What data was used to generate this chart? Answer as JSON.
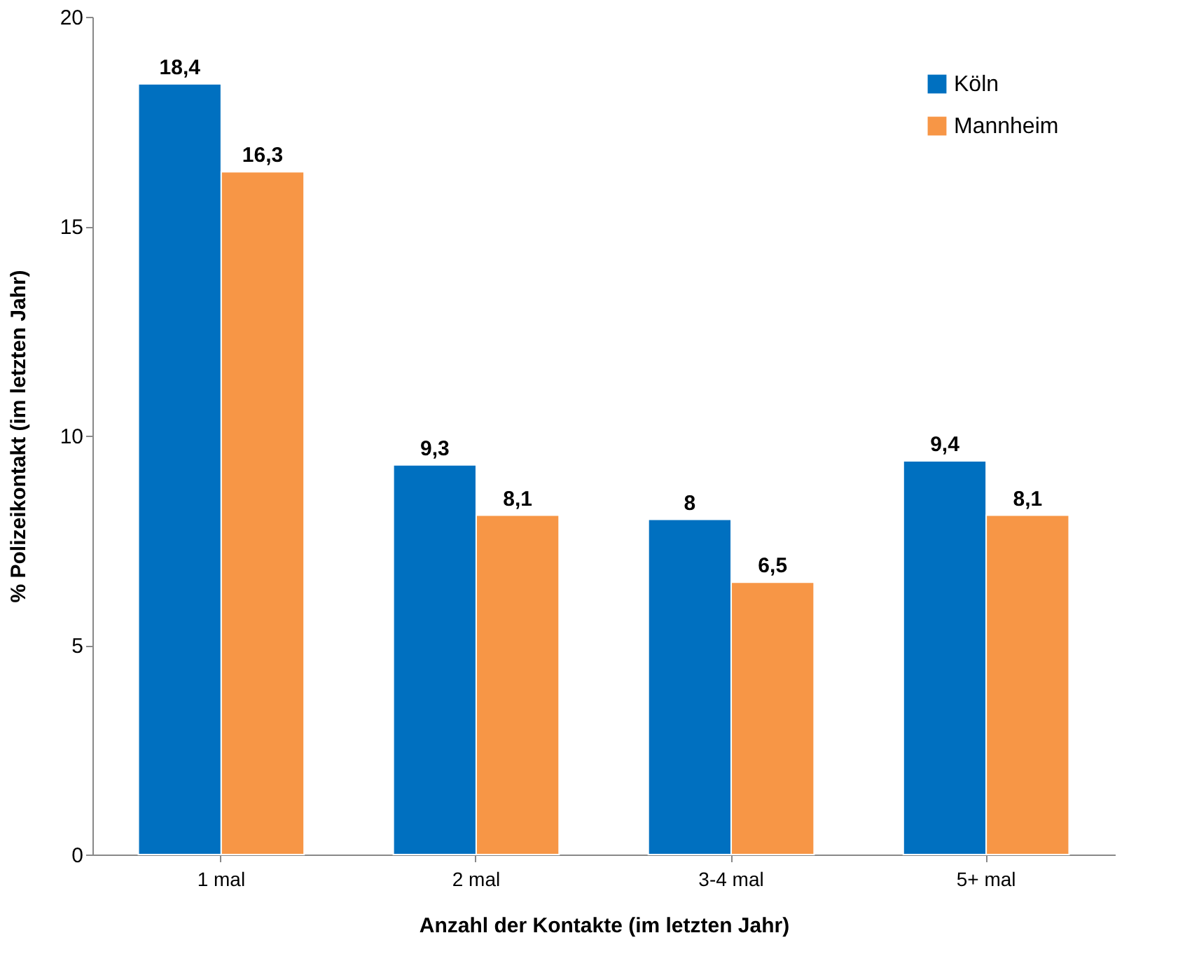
{
  "chart_data": {
    "type": "bar",
    "categories": [
      "1 mal",
      "2 mal",
      "3-4 mal",
      "5+ mal"
    ],
    "series": [
      {
        "name": "Köln",
        "color": "#0070c0",
        "values": [
          18.4,
          9.3,
          8,
          9.4
        ],
        "value_labels": [
          "18,4",
          "9,3",
          "8",
          "9,4"
        ]
      },
      {
        "name": "Mannheim",
        "color": "#f79646",
        "values": [
          16.3,
          8.1,
          6.5,
          8.1
        ],
        "value_labels": [
          "16,3",
          "8,1",
          "6,5",
          "8,1"
        ]
      }
    ],
    "xlabel": "Anzahl der Kontakte (im letzten Jahr)",
    "ylabel": "% Polizeikontakt (im letzten Jahr)",
    "ylim": [
      0,
      20
    ],
    "yticks": [
      0,
      5,
      10,
      15,
      20
    ],
    "grid": false,
    "legend": "top right"
  }
}
